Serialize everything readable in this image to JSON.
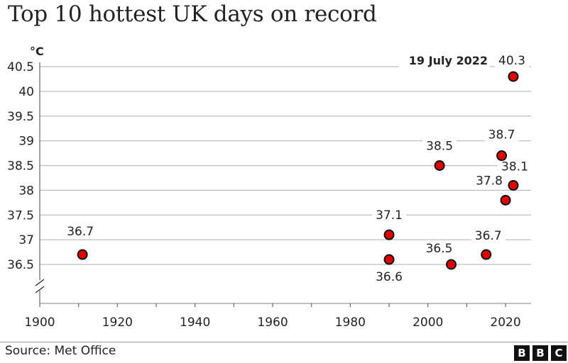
{
  "title": "Top 10 hottest UK days on record",
  "source": "Source: Met Office",
  "logo": [
    "B",
    "B",
    "C"
  ],
  "chart_data": {
    "type": "scatter",
    "title": "Top 10 hottest UK days on record",
    "xlabel": "",
    "ylabel": "°C",
    "xlim": [
      1900,
      2028
    ],
    "ylim": [
      36.5,
      40.5
    ],
    "x_ticks": [
      1900,
      1920,
      1940,
      1960,
      1980,
      2000,
      2020
    ],
    "y_ticks": [
      36.5,
      37,
      37.5,
      38,
      38.5,
      39,
      39.5,
      40,
      40.5
    ],
    "y_axis_break": true,
    "grid": "horizontal",
    "marker_color": "#e00000",
    "points": [
      {
        "x": 1911,
        "y": 36.7,
        "label": "36.7"
      },
      {
        "x": 1990,
        "y": 37.1,
        "label": "37.1"
      },
      {
        "x": 1990,
        "y": 36.6,
        "label": "36.6"
      },
      {
        "x": 2003,
        "y": 38.5,
        "label": "38.5"
      },
      {
        "x": 2006,
        "y": 36.5,
        "label": "36.5"
      },
      {
        "x": 2015,
        "y": 36.7,
        "label": "36.7"
      },
      {
        "x": 2019,
        "y": 38.7,
        "label": "38.7"
      },
      {
        "x": 2020,
        "y": 37.8,
        "label": "37.8"
      },
      {
        "x": 2022,
        "y": 38.1,
        "label": "38.1"
      },
      {
        "x": 2022,
        "y": 40.3,
        "label": "40.3"
      }
    ],
    "annotations": [
      {
        "text": "19 July 2022",
        "x": 2022,
        "y": 40.3
      }
    ]
  }
}
